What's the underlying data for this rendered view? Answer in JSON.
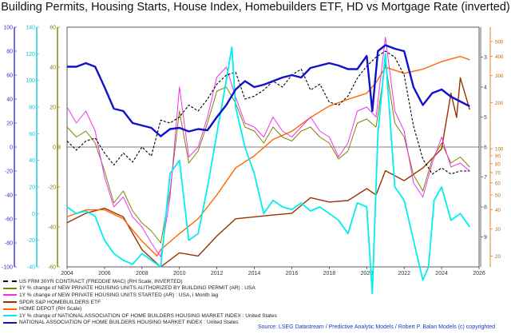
{
  "title": "Building Permits, Housing Starts, House Index, Homebuilders ETF, HD vs Mortgage Rate (inverted)",
  "source": "Source: LSEG Datastream / Predictive Analytic Models / Robert P. Balan Models (c) copyrighted",
  "chart_data": {
    "type": "line",
    "x_ticks": [
      "2004",
      "2006",
      "2008",
      "2010",
      "2012",
      "2014",
      "2016",
      "2018",
      "2020",
      "2022",
      "2024",
      "2026"
    ],
    "xlim": [
      2004,
      2026
    ],
    "grid": false,
    "legend_position": "bottom-left",
    "left_axes": [
      {
        "name": "blue",
        "color": "#3333cc",
        "ticks": [
          "100",
          "80",
          "60",
          "40",
          "20",
          "0",
          "-20",
          "-40",
          "-60",
          "-80",
          "-100"
        ]
      },
      {
        "name": "cyan",
        "color": "#11c4d6",
        "ticks": [
          "140",
          "120",
          "100",
          "80",
          "60",
          "40",
          "20",
          "0",
          "-20",
          "-40"
        ]
      },
      {
        "name": "olive",
        "color": "#808000",
        "ticks": [
          "60",
          "40",
          "20",
          "0",
          "-20",
          "-40",
          "-60"
        ]
      }
    ],
    "right_axes": [
      {
        "name": "mortgage_inverted",
        "color": "#444444",
        "ticks": [
          "3",
          "4",
          "5",
          "6",
          "7",
          "8",
          "9"
        ]
      },
      {
        "name": "log",
        "color": "#cc6600",
        "ticks": [
          "500",
          "400",
          "300",
          "200",
          "100",
          "90",
          "80",
          "70",
          "60",
          "50",
          "40",
          "30",
          "20"
        ]
      }
    ],
    "reference_line": {
      "label": "0"
    },
    "series": [
      {
        "name": "US FRM 30YR CONTRACT (FREDDIE MAC) (RH Scale, INVERTED)",
        "color": "#000000",
        "style": "dashed",
        "x": [
          2004,
          2004.5,
          2005,
          2005.5,
          2006,
          2006.5,
          2007,
          2007.5,
          2008,
          2008.5,
          2009,
          2009.5,
          2010,
          2010.5,
          2011,
          2011.5,
          2012,
          2012.5,
          2013,
          2013.5,
          2014,
          2014.5,
          2015,
          2015.5,
          2016,
          2016.5,
          2017,
          2017.5,
          2018,
          2018.5,
          2019,
          2019.5,
          2020,
          2020.5,
          2021,
          2021.5,
          2022,
          2022.5,
          2023,
          2023.5,
          2024,
          2024.5,
          2025,
          2025.5
        ],
        "y": [
          5.8,
          6.1,
          5.8,
          5.7,
          6.2,
          6.6,
          6.2,
          6.5,
          6.0,
          6.3,
          5.1,
          5.2,
          5.0,
          4.6,
          4.8,
          4.4,
          3.9,
          3.6,
          3.5,
          4.4,
          4.3,
          4.1,
          3.8,
          4.0,
          3.6,
          3.4,
          4.1,
          3.9,
          4.5,
          4.6,
          4.3,
          3.7,
          3.3,
          3.0,
          2.8,
          3.0,
          3.6,
          5.3,
          6.4,
          6.9,
          6.7,
          6.9,
          6.8,
          6.8
        ]
      },
      {
        "name": "1Y % change of NEW PRIVATE HOUSING UNITS AUTHORIZED BY BUILDING PERMIT (AR) : USA",
        "color": "#808000",
        "style": "solid",
        "x": [
          2004,
          2004.5,
          2005,
          2005.5,
          2006,
          2006.5,
          2007,
          2007.5,
          2008,
          2008.5,
          2009,
          2009.5,
          2010,
          2010.5,
          2011,
          2011.5,
          2012,
          2012.5,
          2013,
          2013.5,
          2014,
          2014.5,
          2015,
          2015.5,
          2016,
          2016.5,
          2017,
          2017.5,
          2018,
          2018.5,
          2019,
          2019.5,
          2020,
          2020.5,
          2021,
          2021.5,
          2022,
          2022.5,
          2023,
          2023.5,
          2024,
          2024.5,
          2025,
          2025.5
        ],
        "y": [
          10,
          5,
          8,
          2,
          -12,
          -28,
          -22,
          -32,
          -38,
          -42,
          -48,
          -22,
          18,
          -8,
          -2,
          12,
          28,
          30,
          22,
          10,
          8,
          2,
          10,
          5,
          3,
          8,
          10,
          5,
          2,
          -6,
          -2,
          12,
          14,
          10,
          42,
          12,
          5,
          -14,
          -22,
          -6,
          2,
          -8,
          -5,
          -10
        ]
      },
      {
        "name": "1Y % change of NEW PRIVATE HOUSING UNITS STARTED (AR) : USA, i Month lag",
        "color": "#ee33ee",
        "style": "solid",
        "x": [
          2004,
          2004.5,
          2005,
          2005.5,
          2006,
          2006.5,
          2007,
          2007.5,
          2008,
          2008.5,
          2009,
          2009.5,
          2010,
          2010.5,
          2011,
          2011.5,
          2012,
          2012.5,
          2013,
          2013.5,
          2014,
          2014.5,
          2015,
          2015.5,
          2016,
          2016.5,
          2017,
          2017.5,
          2018,
          2018.5,
          2019,
          2019.5,
          2020,
          2020.5,
          2021,
          2021.5,
          2022,
          2022.5,
          2023,
          2023.5,
          2024,
          2024.5,
          2025,
          2025.5
        ],
        "y": [
          20,
          12,
          18,
          8,
          -15,
          -30,
          -25,
          -35,
          -40,
          -48,
          -55,
          -25,
          30,
          -5,
          0,
          15,
          35,
          40,
          25,
          12,
          10,
          5,
          15,
          8,
          5,
          10,
          15,
          8,
          5,
          -5,
          2,
          18,
          20,
          15,
          55,
          18,
          8,
          -18,
          -25,
          -8,
          5,
          -10,
          -8,
          -12
        ]
      },
      {
        "name": "SPDR S&P HOMEBUILDERS ETF",
        "color": "#993300",
        "style": "solid",
        "x": [
          2004,
          2005,
          2006,
          2007,
          2008,
          2009,
          2010,
          2011,
          2012,
          2013,
          2014,
          2015,
          2016,
          2017,
          2018,
          2019,
          2020,
          2020.5,
          2021,
          2022,
          2023,
          2024,
          2024.5,
          2024.8,
          2025,
          2025.5
        ],
        "y": [
          33,
          38,
          41,
          36,
          22,
          17,
          21,
          20,
          27,
          35,
          36,
          37,
          38,
          48,
          45,
          46,
          55,
          50,
          72,
          62,
          75,
          100,
          230,
          160,
          290,
          180
        ]
      },
      {
        "name": "HOME DEPOT (RH Scale)",
        "color": "#ff6600",
        "style": "solid",
        "x": [
          2004,
          2005,
          2006,
          2007,
          2008,
          2008.8,
          2009,
          2010,
          2011,
          2012,
          2013,
          2014,
          2015,
          2016,
          2017,
          2018,
          2019,
          2020,
          2020.5,
          2021,
          2022,
          2023,
          2024,
          2025,
          2025.5
        ],
        "y": [
          36,
          40,
          40,
          35,
          25,
          20,
          22,
          28,
          35,
          50,
          75,
          90,
          115,
          130,
          160,
          190,
          210,
          230,
          270,
          340,
          310,
          330,
          370,
          400,
          380
        ]
      },
      {
        "name": "1Y % change of NATIONAL ASSOCIATION OF HOME BUILDERS HOUSING MARKET INDEX : United States",
        "color": "#00eeee",
        "style": "solid",
        "x": [
          2004,
          2004.5,
          2005,
          2005.5,
          2006,
          2006.5,
          2007,
          2007.5,
          2008,
          2008.5,
          2009,
          2009.5,
          2010,
          2010.5,
          2011,
          2011.5,
          2012,
          2012.5,
          2012.8,
          2013,
          2013.5,
          2014,
          2014.5,
          2015,
          2015.5,
          2016,
          2016.5,
          2017,
          2017.5,
          2018,
          2018.5,
          2019,
          2019.5,
          2020,
          2020.3,
          2020.6,
          2021,
          2021.5,
          2022,
          2022.5,
          2023,
          2023.3,
          2023.6,
          2024,
          2024.5,
          2025,
          2025.5
        ],
        "y": [
          5,
          0,
          2,
          -2,
          -20,
          -30,
          -35,
          -38,
          -30,
          -35,
          -40,
          30,
          40,
          -20,
          -15,
          20,
          60,
          100,
          125,
          80,
          50,
          30,
          0,
          10,
          5,
          3,
          8,
          2,
          5,
          0,
          -5,
          -15,
          8,
          5,
          -60,
          60,
          120,
          20,
          10,
          -20,
          -50,
          -40,
          10,
          20,
          -5,
          0,
          -10
        ]
      },
      {
        "name": "NATIONAL ASSOCIATION OF HOME BUILDERS HOUSING MARKET INDEX : United States",
        "color": "#1111cc",
        "style": "solid",
        "x": [
          2004,
          2004.5,
          2005,
          2005.5,
          2006,
          2006.5,
          2007,
          2007.5,
          2008,
          2008.5,
          2009,
          2009.5,
          2010,
          2010.5,
          2011,
          2011.5,
          2012,
          2012.5,
          2013,
          2013.5,
          2014,
          2014.5,
          2015,
          2015.5,
          2016,
          2016.5,
          2017,
          2017.5,
          2018,
          2018.5,
          2019,
          2019.5,
          2020,
          2020.3,
          2020.6,
          2021,
          2021.5,
          2022,
          2022.5,
          2023,
          2023.5,
          2024,
          2024.5,
          2025,
          2025.5
        ],
        "y": [
          67,
          67,
          70,
          67,
          50,
          32,
          30,
          20,
          18,
          16,
          9,
          15,
          16,
          13,
          15,
          14,
          25,
          35,
          48,
          55,
          50,
          52,
          55,
          58,
          60,
          58,
          66,
          68,
          70,
          68,
          65,
          65,
          76,
          30,
          80,
          85,
          82,
          80,
          50,
          35,
          45,
          48,
          42,
          38,
          34
        ]
      }
    ]
  }
}
